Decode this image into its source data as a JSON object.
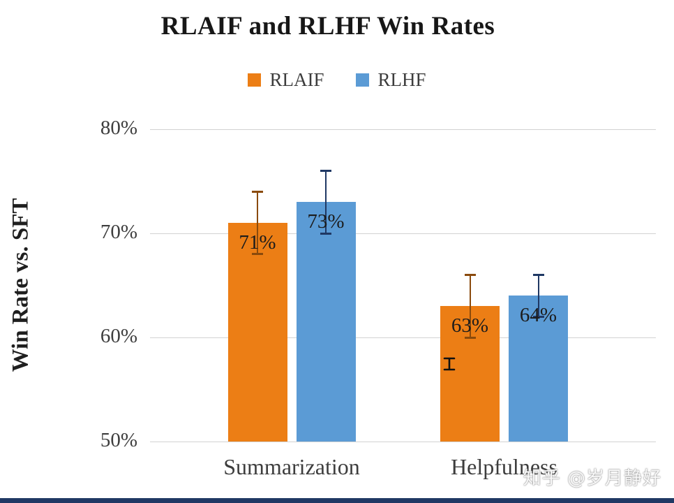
{
  "page": {
    "watermark": "知乎 @岁月静好",
    "bottom_strip_color": "#203864"
  },
  "chart_data": {
    "type": "bar",
    "title": "RLAIF and RLHF Win Rates",
    "xlabel": "",
    "ylabel": "Win Rate vs. SFT",
    "categories": [
      "Summarization",
      "Helpfulness"
    ],
    "series": [
      {
        "name": "RLAIF",
        "color": "#EC7E15",
        "error_color": "#8A4A0C",
        "values": [
          71,
          63
        ],
        "errors": [
          3,
          3
        ],
        "value_labels": [
          "71%",
          "63%"
        ]
      },
      {
        "name": "RLHF",
        "color": "#5B9BD5",
        "error_color": "#1F3864",
        "values": [
          73,
          64
        ],
        "errors": [
          3,
          2
        ],
        "value_labels": [
          "73%",
          "64%"
        ]
      }
    ],
    "ylim": [
      50,
      80
    ],
    "yticks": [
      80,
      70,
      60,
      50
    ],
    "ytick_labels": [
      "80%",
      "70%",
      "60%",
      "50%"
    ],
    "grid": true,
    "legend_position": "top"
  }
}
